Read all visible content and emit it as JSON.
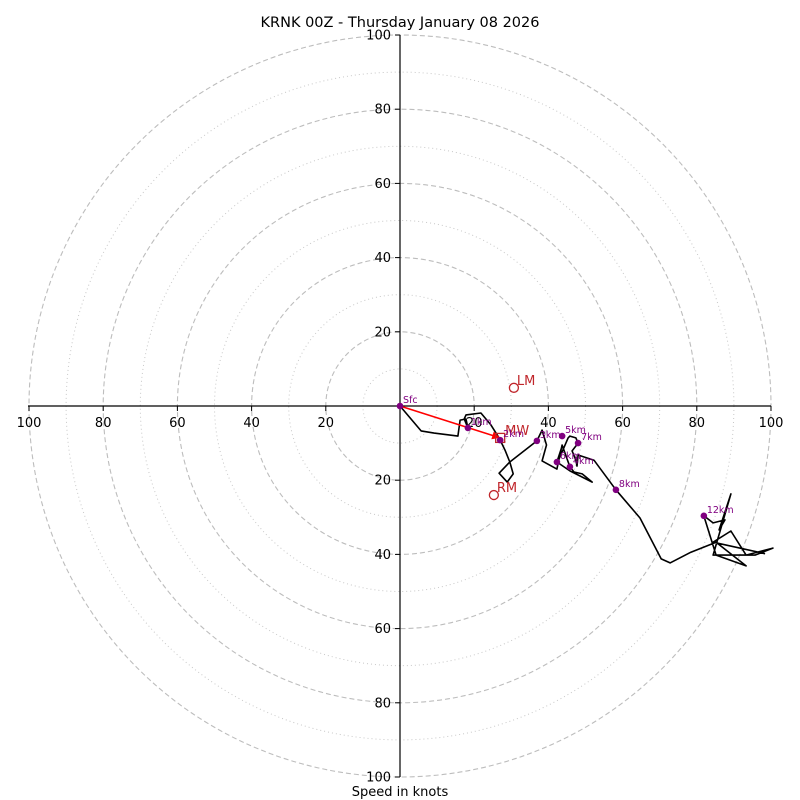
{
  "chart_data": {
    "type": "line",
    "subtype": "hodograph",
    "title": "KRNK 00Z - Thursday January 08 2026",
    "xlabel": "Speed in knots",
    "ylabel": "",
    "xlim": [
      -100,
      100
    ],
    "ylim": [
      -100,
      100
    ],
    "rings_major": [
      20,
      40,
      60,
      80,
      100
    ],
    "rings_minor": [
      10,
      30,
      50,
      70,
      90
    ],
    "x_tick_labels": [
      "100",
      "80",
      "60",
      "40",
      "20",
      "20",
      "40",
      "60",
      "80",
      "100"
    ],
    "x_tick_values": [
      -100,
      -80,
      -60,
      -40,
      -20,
      20,
      40,
      60,
      80,
      100
    ],
    "y_tick_labels": [
      "100",
      "80",
      "60",
      "40",
      "20",
      "20",
      "40",
      "60",
      "80",
      "100"
    ],
    "y_tick_values": [
      100,
      80,
      60,
      40,
      20,
      -20,
      -40,
      -60,
      -80,
      -100
    ],
    "grid": true,
    "profile": {
      "name": "wind profile",
      "color": "#000000",
      "u": [
        0,
        5.7,
        9.2,
        15.6,
        16.2,
        17.8,
        18.3,
        17.3,
        17.8,
        21.8,
        24.5,
        26.4,
        27,
        28.3,
        29.6,
        30.5,
        28.9,
        26.7,
        29.6,
        36.9,
        38.3,
        39.5,
        38.3,
        42.3,
        43.7,
        45.8,
        46.9,
        49.1,
        51.8,
        45.8,
        42.3,
        43.7,
        42.3,
        45.3,
        45.8,
        47.4,
        48,
        46.4,
        47.4,
        47.7,
        48,
        52.3,
        58.2,
        64.7,
        70.4,
        72.8,
        78.4,
        85.2,
        93.3,
        85.2,
        81.9,
        84.4,
        87.6,
        86,
        89.2,
        84.4,
        95.7,
        100.5,
        93.3,
        89.2,
        84.4,
        98.4
      ],
      "v": [
        0,
        -6.7,
        -7.3,
        -8.1,
        -3.8,
        -3.5,
        -5.9,
        -3.5,
        -2.4,
        -1.9,
        -5.1,
        -8.1,
        -9.2,
        -11.9,
        -15.1,
        -18.3,
        -20.5,
        -18.1,
        -15.1,
        -9.4,
        -6.5,
        -10.5,
        -14.8,
        -17,
        -10.5,
        -16.4,
        -17.8,
        -18.3,
        -20.5,
        -17.5,
        -15.1,
        -10.8,
        -15.6,
        -8.6,
        -8.1,
        -8.6,
        -10,
        -12.1,
        -14.6,
        -16.2,
        -13.2,
        -14.6,
        -22.6,
        -30.2,
        -41.2,
        -42.3,
        -39.4,
        -36.7,
        -43.1,
        -40.2,
        -29.6,
        -31.5,
        -30.7,
        -33.4,
        -23.7,
        -40.2,
        -40.2,
        -38.3,
        -40.2,
        -33.7,
        -36.7,
        -39.8
      ]
    },
    "height_markers": [
      {
        "label": "Sfc",
        "u": 0,
        "v": 0
      },
      {
        "label": "1km",
        "u": 18.3,
        "v": -5.9
      },
      {
        "label": "2km",
        "u": 27,
        "v": -9.2
      },
      {
        "label": "3km",
        "u": 36.9,
        "v": -9.4
      },
      {
        "label": "4km",
        "u": 45.8,
        "v": -16.4
      },
      {
        "label": "5km",
        "u": 43.7,
        "v": -8.1
      },
      {
        "label": "6km",
        "u": 42.3,
        "v": -15.1
      },
      {
        "label": "7km",
        "u": 48,
        "v": -10
      },
      {
        "label": "8km",
        "u": 58.2,
        "v": -22.6
      },
      {
        "label": "12km",
        "u": 81.9,
        "v": -29.6
      }
    ],
    "marker_color": "#800080",
    "storm_motion": {
      "color": "#c0262b",
      "bunkers_left": {
        "label": "LM",
        "u": 30.7,
        "v": 4.9
      },
      "bunkers_right": {
        "label": "RM",
        "u": 25.3,
        "v": -24
      },
      "mean_wind": {
        "label": "MW",
        "u": 27,
        "v": -8.6
      },
      "shear_vector": {
        "from_u": 0,
        "from_v": 0,
        "to_u": 27,
        "to_v": -8.6,
        "color": "#ff0000"
      }
    }
  }
}
